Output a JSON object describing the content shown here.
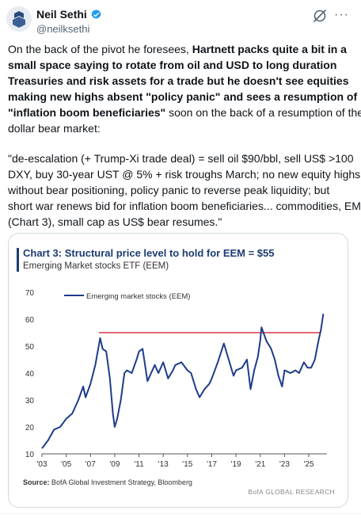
{
  "author": {
    "name": "Neil Sethi",
    "handle": "@neilksethi",
    "verified_badge": "verified-badge-icon"
  },
  "tweet": {
    "lines_p1": [
      {
        "t": "On the back of the pivot he foresees, ",
        "b": "Hartnett packs quite a bit in a"
      },
      {
        "t": "",
        "b": "small space saying to rotate from oil and USD to long duration"
      },
      {
        "t": "",
        "b": "Treasuries and risk assets  for a trade but he doesn't see equities"
      },
      {
        "t": "",
        "b": "making new highs absent \"policy panic\" and sees a resumption of"
      },
      {
        "t": "",
        "b": "\"inflation boom beneficiaries\"",
        "t2": " soon on the back of a resumption of the"
      },
      {
        "t": "dollar bear market:",
        "b": ""
      }
    ],
    "lines_p2": [
      "\"de-escalation (+ Trump-Xi trade deal) = sell oil $90/bbl, sell US$ >100",
      "DXY, buy 30-year UST @ 5% + risk troughs March; no new equity highs",
      "without bear  positioning, policy panic to reverse peak liquidity; but",
      "short war renews bid for inflation  boom beneficiaries... commodities, EM",
      "(Chart 3), small cap as US$ bear resumes.\""
    ]
  },
  "chart": {
    "title": "Chart 3: Structural price level to hold for EEM = $55",
    "subtitle": "Emerging Market stocks ETF (EEM)",
    "source_label": "Source:",
    "source_text": " BofA Global Investment Strategy, Bloomberg",
    "watermark": "BofA GLOBAL RESEARCH"
  },
  "chart_data": {
    "type": "line",
    "title": "Chart 3: Structural price level to hold for EEM = $55",
    "subtitle": "Emerging Market stocks ETF (EEM)",
    "xlabel": "",
    "ylabel": "",
    "ylim": [
      10,
      70
    ],
    "xlim": [
      2003,
      2026.5
    ],
    "x_tick_labels": [
      "'03",
      "'05",
      "'07",
      "'09",
      "'11",
      "'13",
      "'15",
      "'17",
      "'19",
      "'21",
      "'23",
      "'25"
    ],
    "x_tick_values": [
      2003,
      2005,
      2007,
      2009,
      2011,
      2013,
      2015,
      2017,
      2019,
      2021,
      2023,
      2025
    ],
    "y_tick_values": [
      10,
      20,
      30,
      40,
      50,
      60,
      70
    ],
    "legend_position": "top-left",
    "series": [
      {
        "name": "Emerging market stocks (EEM)",
        "color": "#1d3c8a",
        "x": [
          2003.0,
          2003.5,
          2004.0,
          2004.5,
          2005.0,
          2005.5,
          2006.0,
          2006.4,
          2006.6,
          2007.0,
          2007.4,
          2007.8,
          2008.0,
          2008.3,
          2008.6,
          2008.85,
          2009.0,
          2009.2,
          2009.5,
          2009.8,
          2010.0,
          2010.4,
          2010.8,
          2011.0,
          2011.3,
          2011.7,
          2012.0,
          2012.3,
          2012.6,
          2013.0,
          2013.4,
          2013.8,
          2014.0,
          2014.5,
          2015.0,
          2015.3,
          2015.7,
          2016.0,
          2016.4,
          2016.8,
          2017.0,
          2017.5,
          2018.0,
          2018.4,
          2018.8,
          2019.0,
          2019.5,
          2019.9,
          2020.2,
          2020.5,
          2020.8,
          2021.0,
          2021.1,
          2021.5,
          2021.9,
          2022.2,
          2022.5,
          2022.8,
          2023.0,
          2023.5,
          2023.9,
          2024.2,
          2024.6,
          2024.9,
          2025.2,
          2025.5,
          2025.8,
          2026.0,
          2026.2
        ],
        "y": [
          12,
          15,
          19,
          20,
          23,
          25,
          30,
          35,
          31,
          36,
          43,
          53,
          49,
          48,
          38,
          25,
          20,
          23,
          30,
          40,
          41,
          40,
          45,
          48,
          49,
          37,
          40,
          43,
          40,
          44,
          38,
          41,
          43,
          44,
          41,
          40,
          34,
          31,
          34,
          36,
          38,
          44,
          51,
          45,
          39,
          41,
          42,
          45,
          34,
          41,
          46,
          52,
          57,
          52,
          49,
          45,
          39,
          35,
          41,
          40,
          41,
          40,
          44,
          42,
          42,
          45,
          52,
          56,
          62
        ]
      }
    ],
    "annotations": [
      {
        "type": "horizontal_line",
        "y": 55,
        "x_start": 2007.7,
        "x_end": 2025.9,
        "color": "#d9364a"
      }
    ]
  }
}
